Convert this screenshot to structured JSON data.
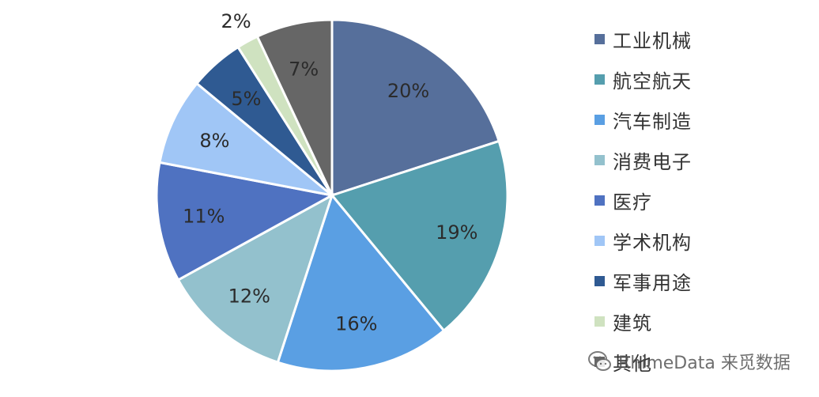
{
  "chart_data": {
    "type": "pie",
    "title": "",
    "slices": [
      {
        "label": "工业机械",
        "value": 20,
        "value_label": "20%",
        "color": "#566f9b"
      },
      {
        "label": "航空航天",
        "value": 19,
        "value_label": "19%",
        "color": "#559eae"
      },
      {
        "label": "汽车制造",
        "value": 16,
        "value_label": "16%",
        "color": "#5a9fe3"
      },
      {
        "label": "消费电子",
        "value": 12,
        "value_label": "12%",
        "color": "#93c1cd"
      },
      {
        "label": "医疗",
        "value": 11,
        "value_label": "11%",
        "color": "#4f72c1"
      },
      {
        "label": "学术机构",
        "value": 8,
        "value_label": "8%",
        "color": "#a0c6f6"
      },
      {
        "label": "军事用途",
        "value": 5,
        "value_label": "5%",
        "color": "#2f5a92"
      },
      {
        "label": "建筑",
        "value": 2,
        "value_label": "2%",
        "color": "#cfe2c0"
      },
      {
        "label": "其他",
        "value": 7,
        "value_label": "7%",
        "color": "#666666"
      }
    ],
    "legend_position": "right"
  },
  "watermark": {
    "text": "RhimeData 来觅数据",
    "icon": "wechat-icon"
  }
}
